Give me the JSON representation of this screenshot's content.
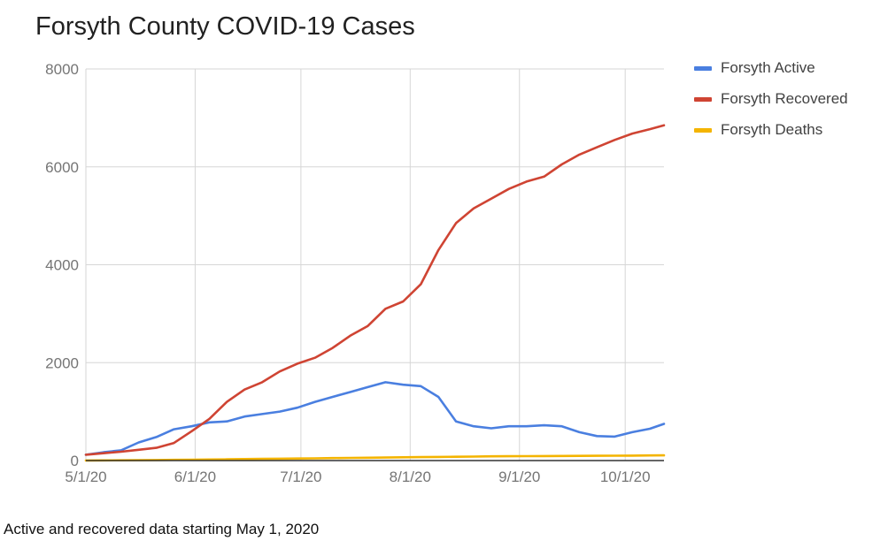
{
  "note": "Active and recovered data starting May 1, 2020",
  "chart_data": {
    "type": "line",
    "title": "Forsyth County COVID-19 Cases",
    "x_format": "M/D/YY",
    "x": [
      "5/1/20",
      "5/6/20",
      "5/11/20",
      "5/16/20",
      "5/21/20",
      "5/26/20",
      "5/31/20",
      "6/5/20",
      "6/10/20",
      "6/15/20",
      "6/20/20",
      "6/25/20",
      "6/30/20",
      "7/5/20",
      "7/10/20",
      "7/15/20",
      "7/20/20",
      "7/25/20",
      "7/30/20",
      "8/4/20",
      "8/9/20",
      "8/14/20",
      "8/19/20",
      "8/24/20",
      "8/29/20",
      "9/3/20",
      "9/8/20",
      "9/13/20",
      "9/18/20",
      "9/23/20",
      "9/28/20",
      "10/3/20",
      "10/8/20",
      "10/12/20"
    ],
    "xticks": [
      "5/1/20",
      "6/1/20",
      "7/1/20",
      "8/1/20",
      "9/1/20",
      "10/1/20"
    ],
    "ylim": [
      0,
      8000
    ],
    "yticks": [
      0,
      2000,
      4000,
      6000,
      8000
    ],
    "grid": true,
    "legend_position": "right",
    "series": [
      {
        "name": "Forsyth Active",
        "color": "#4a7fe0",
        "values": [
          120,
          170,
          210,
          370,
          480,
          640,
          700,
          780,
          800,
          900,
          950,
          1000,
          1080,
          1200,
          1300,
          1400,
          1500,
          1600,
          1550,
          1520,
          1300,
          800,
          700,
          660,
          700,
          700,
          720,
          700,
          580,
          500,
          490,
          580,
          650,
          750
        ]
      },
      {
        "name": "Forsyth Recovered",
        "color": "#cf4433",
        "values": [
          120,
          150,
          180,
          220,
          260,
          360,
          600,
          850,
          1200,
          1450,
          1600,
          1820,
          1980,
          2100,
          2300,
          2550,
          2750,
          3100,
          3250,
          3600,
          4300,
          4850,
          5150,
          5350,
          5550,
          5700,
          5800,
          6050,
          6250,
          6400,
          6550,
          6680,
          6770,
          6850
        ]
      },
      {
        "name": "Forsyth Deaths",
        "color": "#f4b400",
        "values": [
          2,
          4,
          6,
          8,
          10,
          14,
          18,
          22,
          26,
          30,
          34,
          38,
          42,
          46,
          50,
          54,
          58,
          62,
          66,
          70,
          74,
          78,
          82,
          86,
          88,
          90,
          92,
          94,
          96,
          98,
          100,
          102,
          104,
          106
        ]
      }
    ]
  }
}
